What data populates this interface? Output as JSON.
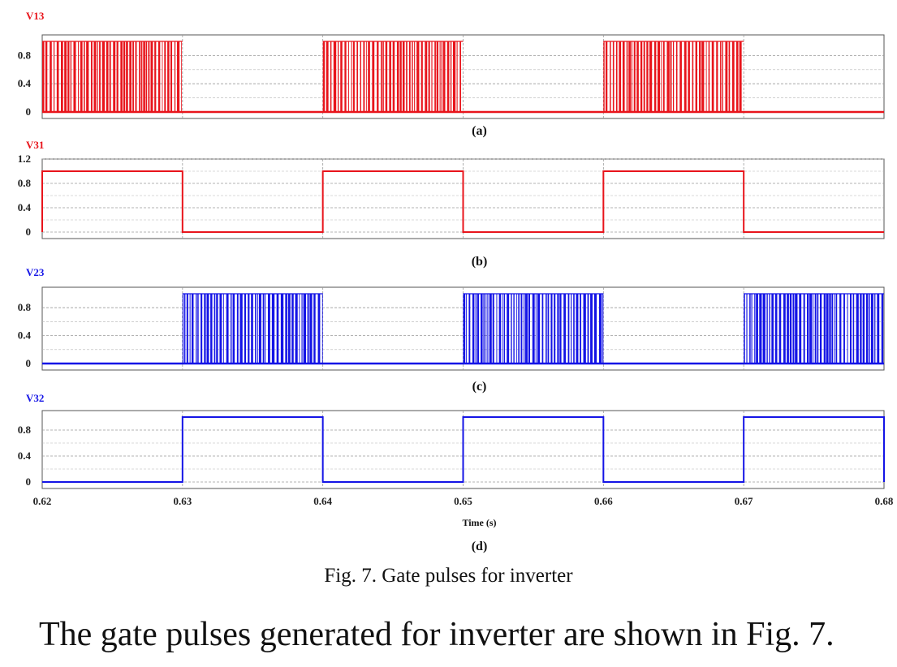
{
  "caption": "Fig. 7. Gate pulses for inverter",
  "body_text": "The gate pulses generated for inverter are shown in Fig. 7.",
  "chart_data": [
    {
      "type": "line",
      "title": "V13",
      "color": "#e8141b",
      "subcaption": "(a)",
      "ylim": [
        0,
        1
      ],
      "yticks": [
        "0",
        "0.4",
        "0.8"
      ],
      "yticks_values": [
        0,
        0.4,
        0.8
      ],
      "xlim": [
        0.62,
        0.68
      ],
      "grid": true,
      "signal": "pwm",
      "series": [
        {
          "pwm_on_intervals": [
            [
              0.62,
              0.63
            ],
            [
              0.64,
              0.65
            ],
            [
              0.66,
              0.67
            ]
          ],
          "amplitude": 1
        }
      ]
    },
    {
      "type": "line",
      "title": "V31",
      "color": "#e8141b",
      "subcaption": "(b)",
      "ylim": [
        0,
        1.2
      ],
      "yticks": [
        "0",
        "0.4",
        "0.8",
        "1.2"
      ],
      "yticks_values": [
        0,
        0.4,
        0.8,
        1.2
      ],
      "xlim": [
        0.62,
        0.68
      ],
      "grid": true,
      "signal": "square",
      "series": [
        {
          "high_intervals": [
            [
              0.62,
              0.63
            ],
            [
              0.64,
              0.65
            ],
            [
              0.66,
              0.67
            ]
          ],
          "amplitude": 1
        }
      ]
    },
    {
      "type": "line",
      "title": "V23",
      "color": "#1414e6",
      "subcaption": "(c)",
      "ylim": [
        0,
        1
      ],
      "yticks": [
        "0",
        "0.4",
        "0.8"
      ],
      "yticks_values": [
        0,
        0.4,
        0.8
      ],
      "xlim": [
        0.62,
        0.68
      ],
      "grid": true,
      "signal": "pwm",
      "series": [
        {
          "pwm_on_intervals": [
            [
              0.63,
              0.64
            ],
            [
              0.65,
              0.66
            ],
            [
              0.67,
              0.68
            ]
          ],
          "amplitude": 1
        }
      ]
    },
    {
      "type": "line",
      "title": "V32",
      "color": "#1414e6",
      "subcaption": "(d)",
      "ylim": [
        0,
        1
      ],
      "yticks": [
        "0",
        "0.4",
        "0.8"
      ],
      "yticks_values": [
        0,
        0.4,
        0.8
      ],
      "xlim": [
        0.62,
        0.68
      ],
      "xticks": [
        "0.62",
        "0.63",
        "0.64",
        "0.65",
        "0.66",
        "0.67",
        "0.68"
      ],
      "xticks_values": [
        0.62,
        0.63,
        0.64,
        0.65,
        0.66,
        0.67,
        0.68
      ],
      "xlabel": "Time (s)",
      "grid": true,
      "signal": "square",
      "series": [
        {
          "high_intervals": [
            [
              0.63,
              0.64
            ],
            [
              0.65,
              0.66
            ],
            [
              0.67,
              0.68
            ]
          ],
          "amplitude": 1
        }
      ]
    }
  ]
}
